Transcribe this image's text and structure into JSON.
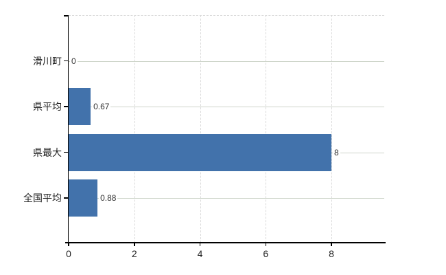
{
  "window": {
    "background": "#ffffff"
  },
  "chart_data": {
    "type": "bar",
    "orientation": "horizontal",
    "title": "",
    "xlabel": "",
    "ylabel": "",
    "categories": [
      "滑川町",
      "県平均",
      "県最大",
      "全国平均"
    ],
    "values": [
      0,
      0.67,
      8,
      0.88
    ],
    "value_labels": [
      "0",
      "0.67",
      "8",
      "0.88"
    ],
    "x_ticks": [
      0,
      2,
      4,
      6,
      8
    ],
    "xlim": [
      0,
      9.6
    ],
    "grid": true,
    "legend": false,
    "colors": {
      "bar": "#4272ab",
      "axis": "#000000",
      "category_gridline": "#cdd4c9",
      "vertical_gridline": "#d9d9d9",
      "top_border": "#d9d9d9",
      "category_text": "#222222",
      "tick_text": "#222222",
      "value_text": "#333333",
      "background": "#ffffff"
    }
  }
}
